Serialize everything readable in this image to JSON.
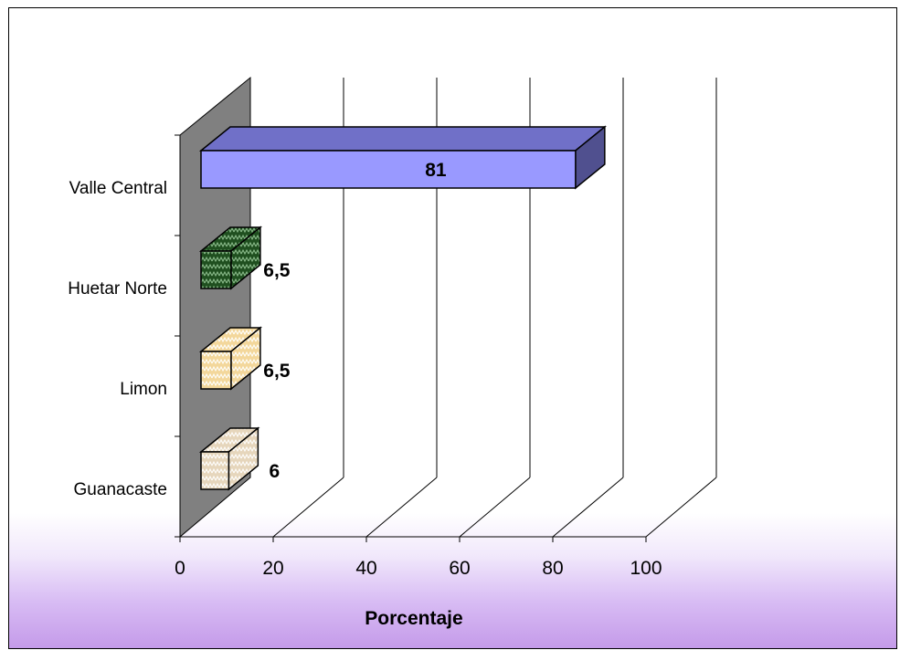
{
  "chart_data": {
    "type": "bar",
    "orientation": "horizontal",
    "three_d": true,
    "categories": [
      "Valle Central",
      "Huetar Norte",
      "Limon",
      "Guanacaste"
    ],
    "values": [
      81,
      6.5,
      6.5,
      6
    ],
    "data_labels": [
      "81",
      "6,5",
      "6,5",
      "6"
    ],
    "xlabel": "Porcentaje",
    "ylabel": "",
    "title": "",
    "xlim": [
      0,
      100
    ],
    "x_ticks": [
      "0",
      "20",
      "40",
      "60",
      "80",
      "100"
    ],
    "grid": true,
    "legend": "none",
    "colors": {
      "Valle Central": "#9999ff",
      "Huetar Norte": "#1f4f1f",
      "Limon": "#f3d79b",
      "Guanacaste": "#e6d6bc",
      "wall": "#808080",
      "background_bottom": "#c49ae9"
    }
  }
}
